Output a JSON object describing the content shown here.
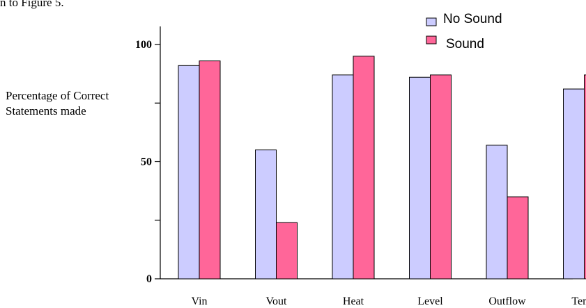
{
  "caption_fragment": "n to Figure 5.",
  "chart_data": {
    "type": "bar",
    "title": "",
    "xlabel": "",
    "ylabel_lines": [
      "Percentage of Correct",
      "Statements made"
    ],
    "categories": [
      "Vin",
      "Vout",
      "Heat",
      "Level",
      "Outflow",
      "Temp"
    ],
    "ylim": [
      0,
      100
    ],
    "yticks": [
      0,
      25,
      50,
      75,
      100
    ],
    "yticklabels": [
      "0",
      "",
      "50",
      "",
      "100"
    ],
    "grid": false,
    "legend_position": "top-right",
    "series": [
      {
        "name": "No Sound",
        "color": "#ccccff",
        "values": [
          91,
          55,
          87,
          86,
          57,
          81
        ]
      },
      {
        "name": "Sound",
        "color": "#ff6699",
        "values": [
          93,
          24,
          95,
          87,
          35,
          87
        ]
      }
    ]
  }
}
